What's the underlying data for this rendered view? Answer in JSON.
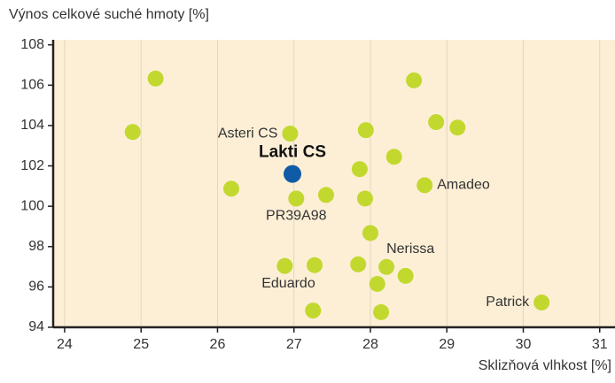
{
  "chart_data": {
    "type": "scatter",
    "title": "Výnos celkové suché hmoty [%]",
    "x_label": "Sklizňová vlhkost [%]",
    "x": [
      25.19,
      24.89,
      26.18,
      26.95,
      26.98,
      27.03,
      27.42,
      27.94,
      27.86,
      28.31,
      27.93,
      28.0,
      28.71,
      28.57,
      28.86,
      29.14,
      26.88,
      27.27,
      27.84,
      28.21,
      28.46,
      28.09,
      27.25,
      28.14,
      30.24
    ],
    "y": [
      106.33,
      103.68,
      100.87,
      103.6,
      101.6,
      100.38,
      100.56,
      103.77,
      101.84,
      102.45,
      100.38,
      98.67,
      101.04,
      106.24,
      104.17,
      103.9,
      97.04,
      97.08,
      97.12,
      96.99,
      96.55,
      96.15,
      94.83,
      94.75,
      95.23
    ],
    "labels": [
      null,
      null,
      null,
      "Asteri CS",
      "Lakti CS",
      "PR39A98",
      null,
      null,
      null,
      null,
      null,
      null,
      "Amadeo",
      null,
      null,
      null,
      null,
      null,
      null,
      "Nerissa",
      null,
      "Eduardo",
      null,
      null,
      "Patrick"
    ],
    "colors": [
      "#c2d82f",
      "#c2d82f",
      "#c2d82f",
      "#c2d82f",
      "#0f5ba6",
      "#c2d82f",
      "#c2d82f",
      "#c2d82f",
      "#c2d82f",
      "#c2d82f",
      "#c2d82f",
      "#c2d82f",
      "#c2d82f",
      "#c2d82f",
      "#c2d82f",
      "#c2d82f",
      "#c2d82f",
      "#c2d82f",
      "#c2d82f",
      "#c2d82f",
      "#c2d82f",
      "#c2d82f",
      "#c2d82f",
      "#c2d82f",
      "#c2d82f"
    ],
    "xlim": [
      23.85,
      31.2
    ],
    "ylim": [
      94,
      108.25
    ],
    "xticks": [
      24,
      25,
      26,
      27,
      28,
      29,
      30,
      31
    ],
    "yticks": [
      94,
      96,
      98,
      100,
      102,
      104,
      106,
      108
    ],
    "grid": true
  }
}
